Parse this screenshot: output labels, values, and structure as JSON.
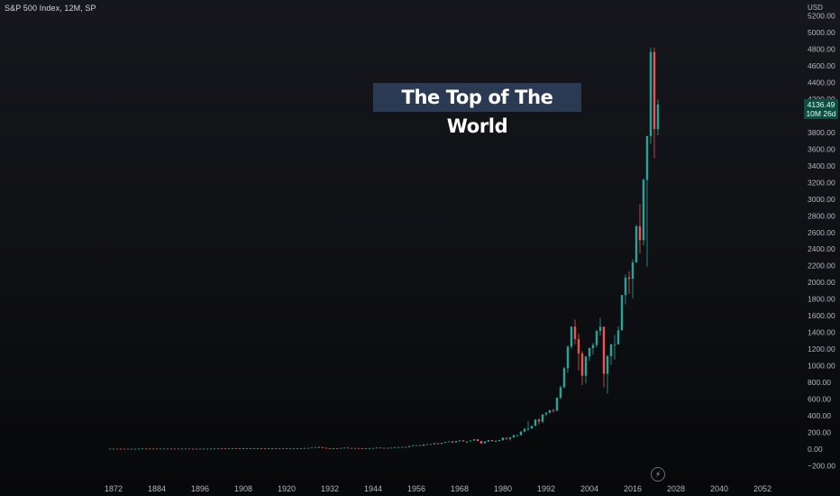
{
  "header": {
    "symbol_title": "S&P 500 Index, 12M, SP"
  },
  "callout": {
    "text": "The Top of The World"
  },
  "price_axis": {
    "currency": "USD"
  },
  "last_price": {
    "value": "4136.49",
    "countdown": "10M 26d",
    "color": "#0a4f41"
  },
  "icons": {
    "lightning": "lightning-icon"
  },
  "colors": {
    "up": "#26a69a",
    "down": "#ef5350"
  },
  "chart_data": {
    "type": "candlestick",
    "title": "",
    "xlabel": "",
    "ylabel": "",
    "ylim": [
      -240,
      5280
    ],
    "xlim": [
      1862,
      2060
    ],
    "grid": false,
    "x_ticks": [
      "1872",
      "1884",
      "1896",
      "1908",
      "1920",
      "1932",
      "1944",
      "1956",
      "1968",
      "1980",
      "1992",
      "2004",
      "2016",
      "2028",
      "2040",
      "2052"
    ],
    "y_ticks": [
      "5200.00",
      "5000.00",
      "4800.00",
      "4600.00",
      "4400.00",
      "4200.00",
      "4000.00",
      "3800.00",
      "3600.00",
      "3400.00",
      "3200.00",
      "3000.00",
      "2800.00",
      "2600.00",
      "2400.00",
      "2200.00",
      "2000.00",
      "1800.00",
      "1600.00",
      "1400.00",
      "1200.00",
      "1000.00",
      "800.00",
      "600.00",
      "400.00",
      "200.00",
      "0.00",
      "−200.00"
    ],
    "candles": [
      {
        "x": 1871,
        "o": 4.5,
        "h": 5,
        "l": 4.4,
        "c": 4.8
      },
      {
        "x": 1872,
        "o": 4.8,
        "h": 5.4,
        "l": 4.7,
        "c": 5.1
      },
      {
        "x": 1873,
        "o": 5.1,
        "h": 5.2,
        "l": 4.4,
        "c": 4.6
      },
      {
        "x": 1874,
        "o": 4.6,
        "h": 4.8,
        "l": 4.3,
        "c": 4.4
      },
      {
        "x": 1875,
        "o": 4.4,
        "h": 4.5,
        "l": 4.2,
        "c": 4.3
      },
      {
        "x": 1876,
        "o": 4.3,
        "h": 4.4,
        "l": 3.5,
        "c": 3.6
      },
      {
        "x": 1877,
        "o": 3.6,
        "h": 3.8,
        "l": 3.2,
        "c": 3.7
      },
      {
        "x": 1878,
        "o": 3.7,
        "h": 4.1,
        "l": 3.6,
        "c": 4
      },
      {
        "x": 1879,
        "o": 4,
        "h": 5.3,
        "l": 3.9,
        "c": 5.2
      },
      {
        "x": 1880,
        "o": 5.2,
        "h": 6.5,
        "l": 5,
        "c": 6.2
      },
      {
        "x": 1881,
        "o": 6.2,
        "h": 6.6,
        "l": 5.9,
        "c": 6
      },
      {
        "x": 1882,
        "o": 6,
        "h": 6.2,
        "l": 5.6,
        "c": 5.9
      },
      {
        "x": 1883,
        "o": 5.9,
        "h": 6,
        "l": 5.2,
        "c": 5.4
      },
      {
        "x": 1884,
        "o": 5.4,
        "h": 5.5,
        "l": 4.4,
        "c": 4.7
      },
      {
        "x": 1885,
        "o": 4.7,
        "h": 5.6,
        "l": 4.5,
        "c": 5.5
      },
      {
        "x": 1886,
        "o": 5.5,
        "h": 6,
        "l": 5.3,
        "c": 5.8
      },
      {
        "x": 1887,
        "o": 5.8,
        "h": 6,
        "l": 5.3,
        "c": 5.4
      },
      {
        "x": 1888,
        "o": 5.4,
        "h": 5.6,
        "l": 5.1,
        "c": 5.3
      },
      {
        "x": 1889,
        "o": 5.3,
        "h": 5.7,
        "l": 5.2,
        "c": 5.5
      },
      {
        "x": 1890,
        "o": 5.5,
        "h": 5.8,
        "l": 4.8,
        "c": 4.9
      },
      {
        "x": 1891,
        "o": 4.9,
        "h": 5.6,
        "l": 4.8,
        "c": 5.4
      },
      {
        "x": 1892,
        "o": 5.4,
        "h": 5.8,
        "l": 5.3,
        "c": 5.6
      },
      {
        "x": 1893,
        "o": 5.6,
        "h": 5.7,
        "l": 4.2,
        "c": 4.5
      },
      {
        "x": 1894,
        "o": 4.5,
        "h": 4.8,
        "l": 4.3,
        "c": 4.4
      },
      {
        "x": 1895,
        "o": 4.4,
        "h": 4.9,
        "l": 4.3,
        "c": 4.6
      },
      {
        "x": 1896,
        "o": 4.6,
        "h": 4.7,
        "l": 4,
        "c": 4.4
      },
      {
        "x": 1897,
        "o": 4.4,
        "h": 5,
        "l": 4.2,
        "c": 4.9
      },
      {
        "x": 1898,
        "o": 4.9,
        "h": 5.8,
        "l": 4.7,
        "c": 5.7
      },
      {
        "x": 1899,
        "o": 5.7,
        "h": 6.6,
        "l": 5.6,
        "c": 6.2
      },
      {
        "x": 1900,
        "o": 6.2,
        "h": 6.9,
        "l": 5.6,
        "c": 6.8
      },
      {
        "x": 1901,
        "o": 6.8,
        "h": 8.4,
        "l": 6.6,
        "c": 7.9
      },
      {
        "x": 1902,
        "o": 7.9,
        "h": 8.3,
        "l": 7.6,
        "c": 7.8
      },
      {
        "x": 1903,
        "o": 7.8,
        "h": 7.9,
        "l": 5.8,
        "c": 6.3
      },
      {
        "x": 1904,
        "o": 6.3,
        "h": 8.1,
        "l": 6.1,
        "c": 8
      },
      {
        "x": 1905,
        "o": 8,
        "h": 9.7,
        "l": 7.9,
        "c": 9.5
      },
      {
        "x": 1906,
        "o": 9.5,
        "h": 10.1,
        "l": 9,
        "c": 9.3
      },
      {
        "x": 1907,
        "o": 9.3,
        "h": 9.5,
        "l": 6.3,
        "c": 6.6
      },
      {
        "x": 1908,
        "o": 6.6,
        "h": 8.8,
        "l": 6.4,
        "c": 8.7
      },
      {
        "x": 1909,
        "o": 8.7,
        "h": 10.3,
        "l": 8.5,
        "c": 10
      },
      {
        "x": 1910,
        "o": 10,
        "h": 10.1,
        "l": 8.4,
        "c": 9
      },
      {
        "x": 1911,
        "o": 9,
        "h": 9.4,
        "l": 8.5,
        "c": 9
      },
      {
        "x": 1912,
        "o": 9,
        "h": 9.6,
        "l": 8.9,
        "c": 9.1
      },
      {
        "x": 1913,
        "o": 9.1,
        "h": 9.2,
        "l": 7.8,
        "c": 8
      },
      {
        "x": 1914,
        "o": 8,
        "h": 8.4,
        "l": 7.3,
        "c": 7.4
      },
      {
        "x": 1915,
        "o": 7.4,
        "h": 9.3,
        "l": 7.2,
        "c": 9
      },
      {
        "x": 1916,
        "o": 9,
        "h": 10,
        "l": 8.7,
        "c": 9.8
      },
      {
        "x": 1917,
        "o": 9.8,
        "h": 10.1,
        "l": 6.8,
        "c": 7.1
      },
      {
        "x": 1918,
        "o": 7.1,
        "h": 8.2,
        "l": 7,
        "c": 7.9
      },
      {
        "x": 1919,
        "o": 7.9,
        "h": 9.5,
        "l": 7.6,
        "c": 8.9
      },
      {
        "x": 1920,
        "o": 8.9,
        "h": 9.2,
        "l": 6.4,
        "c": 6.8
      },
      {
        "x": 1921,
        "o": 6.8,
        "h": 7.3,
        "l": 6.2,
        "c": 7.3
      },
      {
        "x": 1922,
        "o": 7.3,
        "h": 8.9,
        "l": 7.2,
        "c": 8.4
      },
      {
        "x": 1923,
        "o": 8.4,
        "h": 9,
        "l": 8,
        "c": 8.6
      },
      {
        "x": 1924,
        "o": 8.6,
        "h": 10.4,
        "l": 8.5,
        "c": 10.4
      },
      {
        "x": 1925,
        "o": 10.4,
        "h": 13,
        "l": 10.2,
        "c": 12.5
      },
      {
        "x": 1926,
        "o": 12.5,
        "h": 13.8,
        "l": 11.9,
        "c": 13.4
      },
      {
        "x": 1927,
        "o": 13.4,
        "h": 17.4,
        "l": 13.3,
        "c": 17.7
      },
      {
        "x": 1928,
        "o": 17.7,
        "h": 24.4,
        "l": 17.3,
        "c": 24.4
      },
      {
        "x": 1929,
        "o": 24.4,
        "h": 31.9,
        "l": 17.7,
        "c": 21.5
      },
      {
        "x": 1930,
        "o": 21.5,
        "h": 25.9,
        "l": 14.4,
        "c": 15.3
      },
      {
        "x": 1931,
        "o": 15.3,
        "h": 18.2,
        "l": 7.7,
        "c": 8.1
      },
      {
        "x": 1932,
        "o": 8.1,
        "h": 9.3,
        "l": 4.4,
        "c": 6.9
      },
      {
        "x": 1933,
        "o": 6.9,
        "h": 12.2,
        "l": 5.5,
        "c": 10.1
      },
      {
        "x": 1934,
        "o": 10.1,
        "h": 11.8,
        "l": 8.4,
        "c": 9.5
      },
      {
        "x": 1935,
        "o": 9.5,
        "h": 13.5,
        "l": 8.1,
        "c": 13.4
      },
      {
        "x": 1936,
        "o": 13.4,
        "h": 17.7,
        "l": 13.4,
        "c": 17.2
      },
      {
        "x": 1937,
        "o": 17.2,
        "h": 18.7,
        "l": 10.2,
        "c": 10.6
      },
      {
        "x": 1938,
        "o": 10.6,
        "h": 13.8,
        "l": 8.5,
        "c": 13.2
      },
      {
        "x": 1939,
        "o": 13.2,
        "h": 13.2,
        "l": 10.2,
        "c": 12.5
      },
      {
        "x": 1940,
        "o": 12.5,
        "h": 12.8,
        "l": 8.9,
        "c": 10.6
      },
      {
        "x": 1941,
        "o": 10.6,
        "h": 10.9,
        "l": 8.4,
        "c": 8.7
      },
      {
        "x": 1942,
        "o": 8.7,
        "h": 9.8,
        "l": 7.5,
        "c": 9.8
      },
      {
        "x": 1943,
        "o": 9.8,
        "h": 12.6,
        "l": 9.8,
        "c": 11.7
      },
      {
        "x": 1944,
        "o": 11.7,
        "h": 13.3,
        "l": 11.6,
        "c": 13.3
      },
      {
        "x": 1945,
        "o": 13.3,
        "h": 17.7,
        "l": 13.2,
        "c": 17.4
      },
      {
        "x": 1946,
        "o": 17.4,
        "h": 19.3,
        "l": 14.1,
        "c": 15.3
      },
      {
        "x": 1947,
        "o": 15.3,
        "h": 16.2,
        "l": 13.7,
        "c": 15.3
      },
      {
        "x": 1948,
        "o": 15.3,
        "h": 17.1,
        "l": 13.8,
        "c": 15.2
      },
      {
        "x": 1949,
        "o": 15.2,
        "h": 16.8,
        "l": 13.6,
        "c": 16.8
      },
      {
        "x": 1950,
        "o": 16.8,
        "h": 20.4,
        "l": 16.7,
        "c": 20.4
      },
      {
        "x": 1951,
        "o": 20.4,
        "h": 23.9,
        "l": 20.7,
        "c": 23.8
      },
      {
        "x": 1952,
        "o": 23.8,
        "h": 26.6,
        "l": 23.1,
        "c": 26.6
      },
      {
        "x": 1953,
        "o": 26.6,
        "h": 26.7,
        "l": 22.7,
        "c": 24.8
      },
      {
        "x": 1954,
        "o": 24.8,
        "h": 36,
        "l": 24.8,
        "c": 36
      },
      {
        "x": 1955,
        "o": 36,
        "h": 46.4,
        "l": 34.6,
        "c": 45.5
      },
      {
        "x": 1956,
        "o": 45.5,
        "h": 49.7,
        "l": 43.1,
        "c": 46.7
      },
      {
        "x": 1957,
        "o": 46.7,
        "h": 49.1,
        "l": 38.9,
        "c": 39.99
      },
      {
        "x": 1958,
        "o": 39.99,
        "h": 55.2,
        "l": 40.3,
        "c": 55.2
      },
      {
        "x": 1959,
        "o": 55.2,
        "h": 60.7,
        "l": 53.6,
        "c": 59.9
      },
      {
        "x": 1960,
        "o": 59.9,
        "h": 60.4,
        "l": 52.3,
        "c": 58.1
      },
      {
        "x": 1961,
        "o": 58.1,
        "h": 72.6,
        "l": 57.6,
        "c": 71.6
      },
      {
        "x": 1962,
        "o": 71.6,
        "h": 71.1,
        "l": 52.3,
        "c": 63.1
      },
      {
        "x": 1963,
        "o": 63.1,
        "h": 75,
        "l": 62.7,
        "c": 75
      },
      {
        "x": 1964,
        "o": 75,
        "h": 86.3,
        "l": 75.4,
        "c": 84.8
      },
      {
        "x": 1965,
        "o": 84.8,
        "h": 92.6,
        "l": 81.6,
        "c": 92.4
      },
      {
        "x": 1966,
        "o": 92.4,
        "h": 94.1,
        "l": 73.2,
        "c": 80.3
      },
      {
        "x": 1967,
        "o": 80.3,
        "h": 97.6,
        "l": 80.4,
        "c": 96.5
      },
      {
        "x": 1968,
        "o": 96.5,
        "h": 108.4,
        "l": 87.7,
        "c": 103.9
      },
      {
        "x": 1969,
        "o": 103.9,
        "h": 106.2,
        "l": 89.2,
        "c": 92.1
      },
      {
        "x": 1970,
        "o": 92.1,
        "h": 93.5,
        "l": 69.3,
        "c": 92.2
      },
      {
        "x": 1971,
        "o": 92.2,
        "h": 104.8,
        "l": 90.2,
        "c": 102.1
      },
      {
        "x": 1972,
        "o": 102.1,
        "h": 119.1,
        "l": 101.7,
        "c": 118.1
      },
      {
        "x": 1973,
        "o": 118.1,
        "h": 120.2,
        "l": 92.2,
        "c": 97.6
      },
      {
        "x": 1974,
        "o": 97.6,
        "h": 99.8,
        "l": 62.3,
        "c": 68.6
      },
      {
        "x": 1975,
        "o": 68.6,
        "h": 95.6,
        "l": 70,
        "c": 90.2
      },
      {
        "x": 1976,
        "o": 90.2,
        "h": 107.8,
        "l": 90.9,
        "c": 107.5
      },
      {
        "x": 1977,
        "o": 107.5,
        "h": 107,
        "l": 90.7,
        "c": 95.1
      },
      {
        "x": 1978,
        "o": 95.1,
        "h": 106.9,
        "l": 86.9,
        "c": 96.1
      },
      {
        "x": 1979,
        "o": 96.1,
        "h": 111.3,
        "l": 96.1,
        "c": 107.9
      },
      {
        "x": 1980,
        "o": 107.9,
        "h": 140.5,
        "l": 98.2,
        "c": 135.8
      },
      {
        "x": 1981,
        "o": 135.8,
        "h": 138.1,
        "l": 112.8,
        "c": 122.6
      },
      {
        "x": 1982,
        "o": 122.6,
        "h": 143.7,
        "l": 102.4,
        "c": 140.6
      },
      {
        "x": 1983,
        "o": 140.6,
        "h": 172.7,
        "l": 138.3,
        "c": 164.9
      },
      {
        "x": 1984,
        "o": 164.9,
        "h": 170.4,
        "l": 147.8,
        "c": 167.2
      },
      {
        "x": 1985,
        "o": 167.2,
        "h": 212,
        "l": 163.4,
        "c": 211.3
      },
      {
        "x": 1986,
        "o": 211.3,
        "h": 254,
        "l": 203.5,
        "c": 242.2
      },
      {
        "x": 1987,
        "o": 242.2,
        "h": 337.9,
        "l": 216.5,
        "c": 247.1
      },
      {
        "x": 1988,
        "o": 247.1,
        "h": 283.7,
        "l": 242.6,
        "c": 277.7
      },
      {
        "x": 1989,
        "o": 277.7,
        "h": 359.8,
        "l": 275.3,
        "c": 353.4
      },
      {
        "x": 1990,
        "o": 353.4,
        "h": 369.8,
        "l": 294.5,
        "c": 330.2
      },
      {
        "x": 1991,
        "o": 330.2,
        "h": 418.3,
        "l": 309.4,
        "c": 417.1
      },
      {
        "x": 1992,
        "o": 417.1,
        "h": 442.7,
        "l": 394.5,
        "c": 435.7
      },
      {
        "x": 1993,
        "o": 435.7,
        "h": 471.3,
        "l": 426.9,
        "c": 466.5
      },
      {
        "x": 1994,
        "o": 466.5,
        "h": 482.9,
        "l": 435.9,
        "c": 459.3
      },
      {
        "x": 1995,
        "o": 459.3,
        "h": 622.9,
        "l": 457.2,
        "c": 615.9
      },
      {
        "x": 1996,
        "o": 615.9,
        "h": 761.8,
        "l": 597.3,
        "c": 740.7
      },
      {
        "x": 1997,
        "o": 740.7,
        "h": 986.3,
        "l": 733.5,
        "c": 970.4
      },
      {
        "x": 1998,
        "o": 970.4,
        "h": 1244.9,
        "l": 912.8,
        "c": 1229.2
      },
      {
        "x": 1999,
        "o": 1229.2,
        "h": 1473.1,
        "l": 1205.5,
        "c": 1469.3
      },
      {
        "x": 2000,
        "o": 1469.3,
        "h": 1553.1,
        "l": 1254.1,
        "c": 1320.3
      },
      {
        "x": 2001,
        "o": 1320.3,
        "h": 1383.4,
        "l": 944.8,
        "c": 1148.1
      },
      {
        "x": 2002,
        "o": 1148.1,
        "h": 1176.9,
        "l": 768.6,
        "c": 879.8
      },
      {
        "x": 2003,
        "o": 879.8,
        "h": 1112.6,
        "l": 788.9,
        "c": 1111.9
      },
      {
        "x": 2004,
        "o": 1111.9,
        "h": 1217.9,
        "l": 1060.7,
        "c": 1211.9
      },
      {
        "x": 2005,
        "o": 1211.9,
        "h": 1275.8,
        "l": 1136.2,
        "c": 1248.3
      },
      {
        "x": 2006,
        "o": 1248.3,
        "h": 1431.8,
        "l": 1219.3,
        "c": 1418.3
      },
      {
        "x": 2007,
        "o": 1418.3,
        "h": 1576.1,
        "l": 1363.9,
        "c": 1468.4
      },
      {
        "x": 2008,
        "o": 1468.4,
        "h": 1471.8,
        "l": 741,
        "c": 903.3
      },
      {
        "x": 2009,
        "o": 903.3,
        "h": 1130.4,
        "l": 666.8,
        "c": 1115.1
      },
      {
        "x": 2010,
        "o": 1115.1,
        "h": 1262.6,
        "l": 1010.9,
        "c": 1257.6
      },
      {
        "x": 2011,
        "o": 1257.6,
        "h": 1370.6,
        "l": 1074.8,
        "c": 1257.6
      },
      {
        "x": 2012,
        "o": 1257.6,
        "h": 1474.5,
        "l": 1258.9,
        "c": 1426.2
      },
      {
        "x": 2013,
        "o": 1426.2,
        "h": 1849.4,
        "l": 1426.2,
        "c": 1848.4
      },
      {
        "x": 2014,
        "o": 1848.4,
        "h": 2093.6,
        "l": 1737.9,
        "c": 2058.9
      },
      {
        "x": 2015,
        "o": 2058.9,
        "h": 2134.7,
        "l": 1867,
        "c": 2043.9
      },
      {
        "x": 2016,
        "o": 2043.9,
        "h": 2277.5,
        "l": 1810.1,
        "c": 2238.8
      },
      {
        "x": 2017,
        "o": 2238.8,
        "h": 2694,
        "l": 2245.1,
        "c": 2673.6
      },
      {
        "x": 2018,
        "o": 2673.6,
        "h": 2940.9,
        "l": 2346.6,
        "c": 2506.9
      },
      {
        "x": 2019,
        "o": 2506.9,
        "h": 3247.9,
        "l": 2443.9,
        "c": 3230.8
      },
      {
        "x": 2020,
        "o": 3230.8,
        "h": 3760.2,
        "l": 2191.9,
        "c": 3756.1
      },
      {
        "x": 2021,
        "o": 3756.1,
        "h": 4818.6,
        "l": 3662.7,
        "c": 4766.2
      },
      {
        "x": 2022,
        "o": 4766.2,
        "h": 4818.6,
        "l": 3491.6,
        "c": 3839.5
      },
      {
        "x": 2023,
        "o": 3839.5,
        "h": 4195.4,
        "l": 3764.5,
        "c": 4136.49
      }
    ]
  }
}
